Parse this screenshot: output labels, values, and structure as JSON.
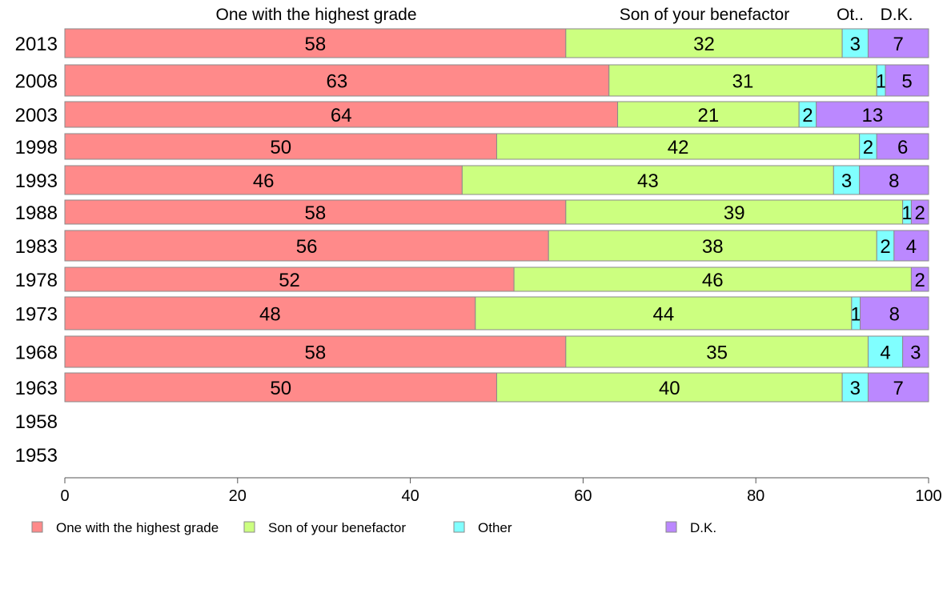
{
  "chart_data": {
    "type": "bar",
    "orientation": "horizontal",
    "stacked": true,
    "categories": [
      "2013",
      "2008",
      "2003",
      "1998",
      "1993",
      "1988",
      "1983",
      "1978",
      "1973",
      "1968",
      "1963",
      "1958",
      "1953"
    ],
    "series": [
      {
        "name": "One with the highest grade",
        "color": "#ff8a8a",
        "values": [
          58,
          63,
          64,
          50,
          46,
          58,
          56,
          52,
          48,
          58,
          50,
          null,
          null
        ]
      },
      {
        "name": "Son of your benefactor",
        "color": "#ccff80",
        "values": [
          32,
          31,
          21,
          42,
          43,
          39,
          38,
          46,
          44,
          35,
          40,
          null,
          null
        ]
      },
      {
        "name": "Other",
        "color": "#80ffff",
        "values": [
          3,
          1,
          2,
          2,
          3,
          1,
          2,
          0,
          1,
          4,
          3,
          null,
          null
        ]
      },
      {
        "name": "D.K.",
        "color": "#bb88ff",
        "values": [
          7,
          5,
          13,
          6,
          8,
          2,
          4,
          2,
          8,
          3,
          7,
          null,
          null
        ]
      }
    ],
    "header_labels": [
      "One with the highest grade",
      "Son of your benefactor",
      "Ot..",
      "D.K."
    ],
    "xlim": [
      0,
      100
    ],
    "xticks": [
      "0",
      "20",
      "40",
      "60",
      "80",
      "100"
    ],
    "grid": false,
    "legend_position": "bottom"
  }
}
